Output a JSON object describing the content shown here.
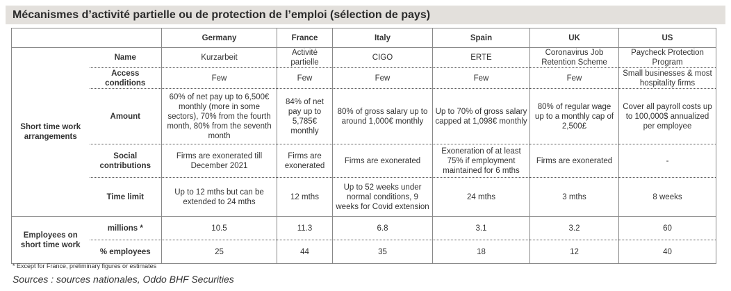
{
  "title": "Mécanismes d’activité partielle ou de protection de l’emploi (sélection de pays)",
  "table": {
    "columns": [
      "Germany",
      "France",
      "Italy",
      "Spain",
      "UK",
      "US"
    ],
    "sections": [
      {
        "label": "Short time work arrangements",
        "rows": [
          {
            "label": "Name",
            "cells": [
              "Kurzarbeit",
              "Activité partielle",
              "CIGO",
              "ERTE",
              "Coronavirus Job Retention Scheme",
              "Paycheck Protection Program"
            ]
          },
          {
            "label": "Access conditions",
            "cells": [
              "Few",
              "Few",
              "Few",
              "Few",
              "Few",
              "Small businesses & most hospitality firms"
            ]
          },
          {
            "label": "Amount",
            "cells": [
              "60% of net pay up to 6,500€ monthly (more in some sectors), 70% from the fourth month, 80% from the seventh month",
              "84% of net pay up to 5,785€ monthly",
              "80% of gross salary up to around 1,000€ monthly",
              "Up to 70% of gross salary capped at 1,098€ monthly",
              "80% of regular wage up to a monthly cap of 2,500£",
              "Cover all payroll costs up to 100,000$ annualized per employee"
            ]
          },
          {
            "label": "Social contributions",
            "cells": [
              "Firms are exonerated till December 2021",
              "Firms are exonerated",
              "Firms are exonerated",
              "Exoneration of at least 75% if employment maintained for 6 mths",
              "Firms are exonerated",
              "-"
            ]
          },
          {
            "label": "Time limit",
            "cells": [
              "Up to 12 mths but can be extended to 24 mths",
              "12 mths",
              "Up to 52 weeks under normal conditions, 9 weeks for Covid extension",
              "24 mths",
              "3 mths",
              "8 weeks"
            ]
          }
        ]
      },
      {
        "label": "Employees on short time work",
        "rows": [
          {
            "label": "millions *",
            "cells": [
              "10.5",
              "11.3",
              "6.8",
              "3.1",
              "3.2",
              "60"
            ]
          },
          {
            "label": "% employees",
            "cells": [
              "25",
              "44",
              "35",
              "18",
              "12",
              "40"
            ]
          }
        ]
      }
    ]
  },
  "footnote": "* Except for France, preliminary figures or estimates",
  "source": "Sources : sources nationales, Oddo BHF Securities"
}
